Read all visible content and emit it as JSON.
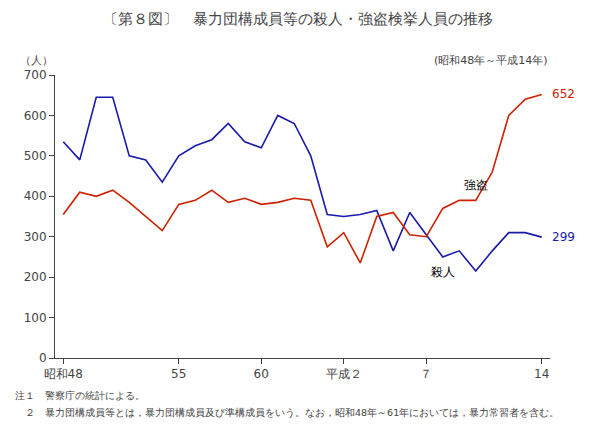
{
  "chart_data": {
    "type": "line",
    "title": "〔第８図〕　暴力団構成員等の殺人・強盗検挙人員の推移",
    "subtitle": "(昭和48年～平成14年)",
    "ylabel": "（人）",
    "notes": [
      "注１　警察庁の統計による。",
      "　２　暴力団構成員等とは，暴力団構成員及び準構成員をいう。なお，昭和48年～61年においては，暴力常習者を含む。"
    ],
    "categories": [
      "昭和48",
      null,
      null,
      null,
      null,
      null,
      null,
      "55",
      null,
      null,
      null,
      null,
      "60",
      null,
      null,
      null,
      null,
      "平成２",
      null,
      null,
      null,
      null,
      "７",
      null,
      null,
      null,
      null,
      null,
      null,
      "14"
    ],
    "series": [
      {
        "name": "殺人",
        "color": "#1a1aaa",
        "values": [
          535,
          490,
          645,
          645,
          500,
          490,
          435,
          500,
          525,
          540,
          580,
          535,
          520,
          600,
          580,
          500,
          355,
          350,
          355,
          365,
          265,
          360,
          305,
          250,
          265,
          215,
          265,
          310,
          310,
          299
        ]
      },
      {
        "name": "強盗",
        "color": "#cc2200",
        "values": [
          355,
          410,
          400,
          415,
          385,
          350,
          315,
          380,
          390,
          415,
          385,
          395,
          380,
          385,
          395,
          390,
          275,
          310,
          235,
          350,
          360,
          305,
          300,
          370,
          390,
          390,
          460,
          600,
          640,
          652
        ]
      }
    ],
    "annotations": [
      {
        "text": "652",
        "series": "強盗"
      },
      {
        "text": "299",
        "series": "殺人"
      }
    ],
    "ylim": [
      0,
      700
    ],
    "yticks": [
      0,
      100,
      200,
      300,
      400,
      500,
      600,
      700
    ],
    "grid": false
  }
}
